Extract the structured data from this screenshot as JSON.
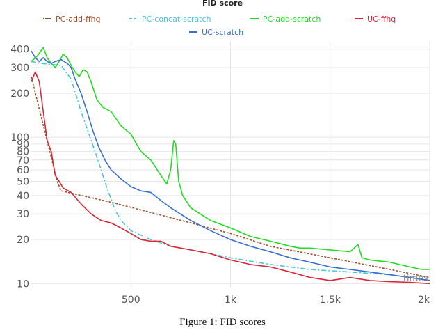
{
  "chart_data": {
    "type": "line",
    "title": "FID score",
    "caption": "Figure 1: FID scores",
    "watermark": "times",
    "xlabel": "",
    "ylabel": "",
    "xlim": [
      0,
      2000
    ],
    "ylim": [
      9.5,
      450
    ],
    "yscale": "log",
    "x_ticks": [
      500,
      1000,
      1500,
      2000
    ],
    "x_tick_labels": [
      "500",
      "1k",
      "1.5k",
      "2k"
    ],
    "y_ticks": [
      10,
      20,
      30,
      40,
      50,
      60,
      70,
      80,
      90,
      100,
      200,
      300,
      400
    ],
    "y_tick_labels": [
      "10",
      "20",
      "30",
      "40",
      "50",
      "60",
      "70",
      "80",
      "90",
      "100",
      "200",
      "300",
      "400"
    ],
    "legend_position": "top",
    "series": [
      {
        "name": "PC-add-ffhq",
        "color": "#a0522d",
        "dash": "dotted",
        "x": [
          0,
          130,
          150,
          400,
          800,
          1000,
          1200,
          1500,
          1800,
          2000
        ],
        "y": [
          260,
          50,
          43,
          36,
          26,
          22,
          18,
          15,
          12.5,
          11
        ]
      },
      {
        "name": "PC-concat-scratch",
        "color": "#49c5d8",
        "dash": "dashdot",
        "x": [
          0,
          50,
          150,
          200,
          250,
          320,
          380,
          400,
          420,
          450,
          500,
          600,
          700,
          800,
          900,
          1000,
          1200,
          1400,
          1600,
          1800,
          2000
        ],
        "y": [
          330,
          320,
          310,
          250,
          150,
          80,
          45,
          38,
          32,
          27,
          23,
          20,
          18,
          17,
          16,
          15,
          13.5,
          12.5,
          12,
          11.5,
          10.5
        ]
      },
      {
        "name": "PC-add-scratch",
        "color": "#22dd22",
        "dash": "solid",
        "x": [
          0,
          30,
          60,
          80,
          100,
          120,
          140,
          160,
          180,
          200,
          220,
          240,
          260,
          280,
          300,
          330,
          360,
          400,
          450,
          500,
          550,
          600,
          650,
          680,
          700,
          715,
          725,
          740,
          760,
          800,
          900,
          1000,
          1100,
          1200,
          1300,
          1350,
          1400,
          1500,
          1600,
          1640,
          1660,
          1700,
          1800,
          1900,
          1960,
          2000
        ],
        "y": [
          330,
          360,
          410,
          350,
          320,
          300,
          330,
          370,
          350,
          310,
          280,
          260,
          290,
          280,
          240,
          180,
          160,
          150,
          120,
          105,
          80,
          70,
          55,
          48,
          60,
          95,
          90,
          50,
          40,
          33,
          27,
          24,
          21,
          19.5,
          18,
          17.5,
          17.5,
          17,
          16.5,
          18.5,
          15,
          14.5,
          14,
          13,
          12.5,
          12.5
        ]
      },
      {
        "name": "UC-ffhq",
        "color": "#d62839",
        "dash": "solid",
        "x": [
          0,
          20,
          40,
          60,
          80,
          100,
          120,
          140,
          160,
          200,
          250,
          300,
          350,
          400,
          450,
          500,
          550,
          600,
          650,
          700,
          800,
          900,
          1000,
          1100,
          1200,
          1300,
          1400,
          1500,
          1600,
          1700,
          1800,
          1900,
          2000
        ],
        "y": [
          240,
          280,
          240,
          150,
          95,
          80,
          55,
          50,
          45,
          42,
          35,
          30,
          27,
          26,
          24,
          22,
          20,
          19.5,
          19.5,
          18,
          17,
          16,
          14.5,
          13.5,
          13,
          12,
          11,
          10.5,
          11,
          10.5,
          10.3,
          10.2,
          10
        ]
      },
      {
        "name": "UC-scratch",
        "color": "#3b6fcc",
        "dash": "solid",
        "x": [
          0,
          20,
          40,
          60,
          80,
          100,
          120,
          150,
          180,
          200,
          220,
          250,
          280,
          310,
          340,
          370,
          400,
          450,
          500,
          550,
          600,
          650,
          700,
          800,
          900,
          1000,
          1100,
          1200,
          1300,
          1400,
          1500,
          1600,
          1700,
          1800,
          1900,
          2000
        ],
        "y": [
          390,
          350,
          330,
          350,
          330,
          320,
          330,
          340,
          320,
          300,
          250,
          200,
          150,
          110,
          85,
          70,
          60,
          52,
          46,
          43,
          42,
          37,
          33,
          27,
          23,
          20,
          18,
          16.5,
          15,
          14,
          13,
          12.5,
          12,
          11.5,
          11,
          10.5
        ]
      }
    ]
  }
}
